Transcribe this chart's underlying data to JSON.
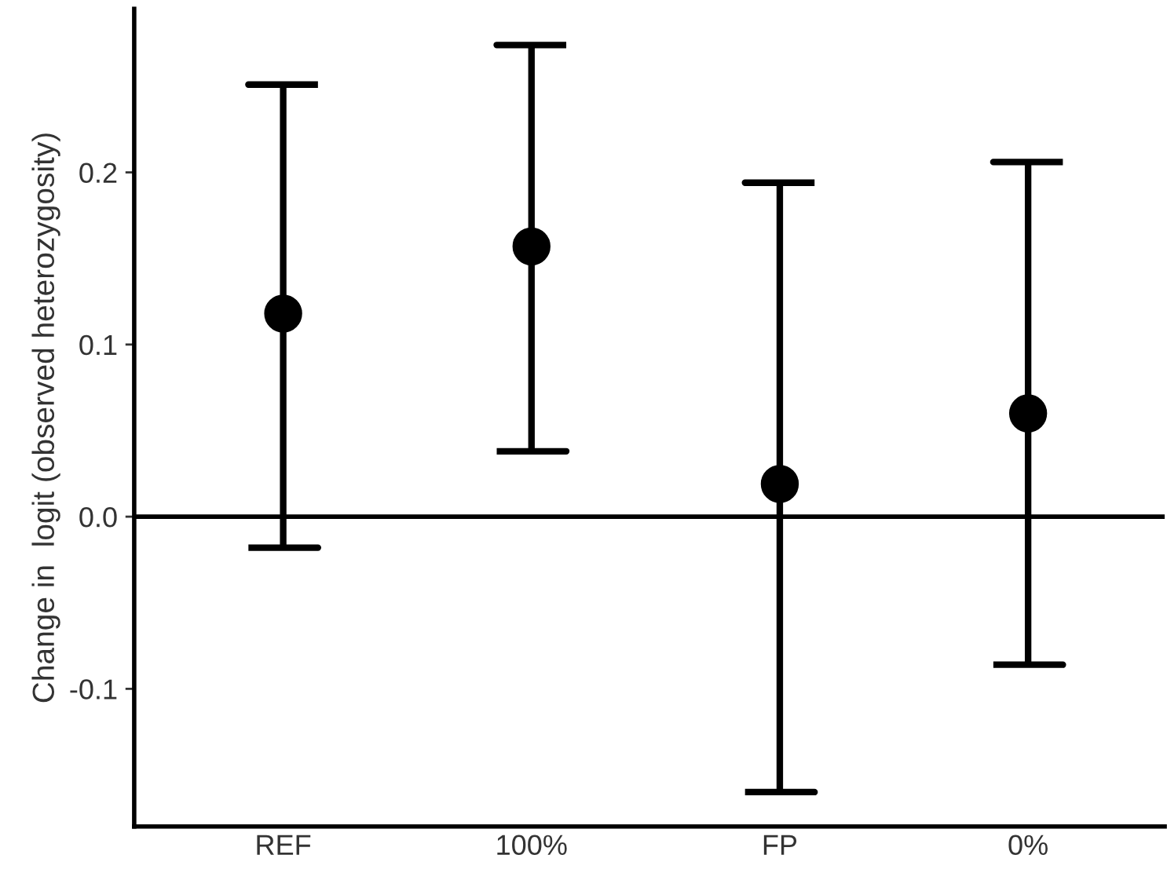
{
  "chart_data": {
    "type": "scatter",
    "ylabel": "Change in  logit (observed heterozygosity)",
    "categories": [
      "REF",
      "100%",
      "FP",
      "0%"
    ],
    "values": [
      0.118,
      0.157,
      0.019,
      0.06
    ],
    "errors": [
      [
        -0.018,
        0.251
      ],
      [
        0.038,
        0.274
      ],
      [
        -0.16,
        0.194
      ],
      [
        -0.086,
        0.206
      ]
    ],
    "color": "#000000",
    "marker": "circle",
    "ylim": [
      -0.18,
      0.295
    ],
    "yticks": [
      {
        "value": -0.1,
        "label": "-0.1"
      },
      {
        "value": 0.0,
        "label": "0.0"
      },
      {
        "value": 0.1,
        "label": "0.1"
      },
      {
        "value": 0.2,
        "label": "0.2"
      }
    ],
    "ref_lines": [
      {
        "axis": "y",
        "value": 0,
        "label": null,
        "color": "#000000"
      }
    ],
    "grid": false,
    "legend": false
  }
}
